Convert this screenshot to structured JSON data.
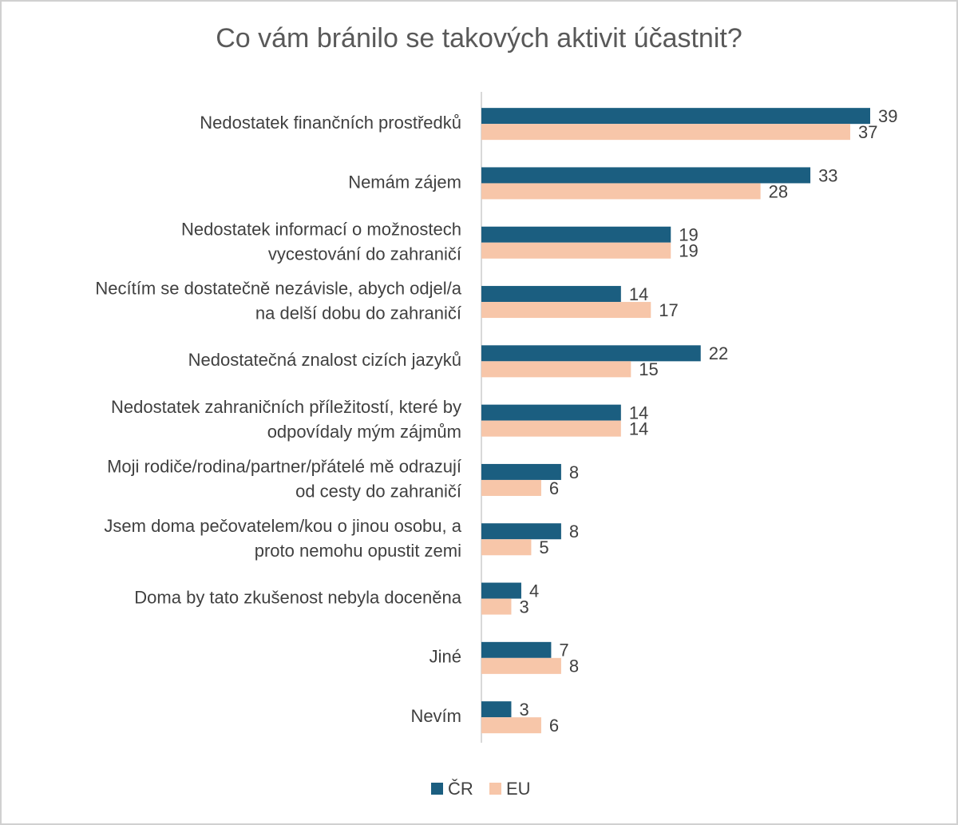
{
  "chart_data": {
    "type": "bar",
    "orientation": "horizontal",
    "title": "Co vám bránilo se takových aktivit účastnit?",
    "categories": [
      "Nedostatek finančních prostředků",
      "Nemám zájem",
      "Nedostatek informací o možnostech\nvycestování do zahraničí",
      "Necítím se dostatečně nezávisle, abych odjel/a\nna delší dobu do zahraničí",
      "Nedostatečná znalost cizích jazyků",
      "Nedostatek zahraničních příležitostí, které by\nodpovídaly mým zájmům",
      "Moji rodiče/rodina/partner/přátelé mě odrazují\nod cesty do zahraničí",
      "Jsem doma pečovatelem/kou o jinou osobu, a\nproto nemohu opustit zemi",
      "Doma by tato zkušenost nebyla doceněna",
      "Jiné",
      "Nevím"
    ],
    "series": [
      {
        "name": "ČR",
        "color": "#1b5e80",
        "values": [
          39,
          33,
          19,
          14,
          22,
          14,
          8,
          8,
          4,
          7,
          3
        ]
      },
      {
        "name": "EU",
        "color": "#f7c6a9",
        "values": [
          37,
          28,
          19,
          17,
          15,
          14,
          6,
          5,
          3,
          8,
          6
        ]
      }
    ],
    "legend": "bottom"
  }
}
